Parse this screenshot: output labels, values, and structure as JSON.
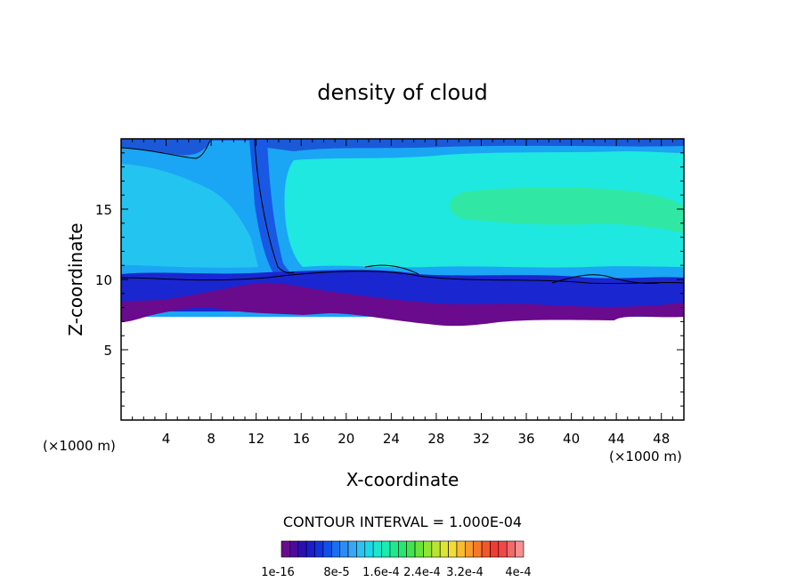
{
  "chart_data": {
    "type": "heatmap",
    "title": "density of cloud",
    "xlabel": "X-coordinate",
    "ylabel": "Z-coordinate",
    "x_unit": "(×1000 m)",
    "x_unit_right": "(×1000 m)",
    "xlim": [
      0,
      50
    ],
    "ylim": [
      0,
      20
    ],
    "x_ticks": [
      4,
      8,
      12,
      16,
      20,
      24,
      28,
      32,
      36,
      40,
      44,
      48
    ],
    "y_ticks": [
      5,
      10,
      15
    ],
    "contour_interval_label": "CONTOUR INTERVAL = 1.000E-04",
    "colorbar": {
      "colors": [
        "#6a0a8c",
        "#4b0a9e",
        "#2a10b4",
        "#1a1ecc",
        "#1234de",
        "#1050ea",
        "#1870f0",
        "#2c8cf4",
        "#38a6f6",
        "#2cc2f2",
        "#1cd8e8",
        "#1ce6cc",
        "#1ceab0",
        "#1ce890",
        "#24e670",
        "#40e450",
        "#68e438",
        "#90e432",
        "#b8e432",
        "#dce434",
        "#f4dc34",
        "#f8bc30",
        "#f89a2c",
        "#f8782a",
        "#f4562a",
        "#f03a34",
        "#f04848",
        "#f06a6a",
        "#f49090"
      ],
      "tick_labels": [
        "1e-16",
        "8e-5",
        "1.6e-4",
        "2.4e-4",
        "3.2e-4",
        "4e-4"
      ]
    },
    "field_bands": [
      {
        "level": "1e-16 to 4e-5",
        "color": "#6a0a8c",
        "z_range": [
          7,
          9
        ]
      },
      {
        "level": "4e-5 to 8e-5",
        "color": "#1a1ecc",
        "z_range": [
          8.5,
          10
        ]
      },
      {
        "level": "8e-5 to 1.6e-4",
        "color": "#1aa6f4",
        "z_range": [
          10,
          13
        ]
      },
      {
        "level": "1.6e-4 to 2.0e-4",
        "color": "#1ee8e0",
        "z_range": [
          12,
          18
        ]
      },
      {
        "level": "2.0e-4 to 2.4e-4",
        "color": "#30e8a0",
        "z_range": [
          13,
          16
        ]
      }
    ]
  }
}
